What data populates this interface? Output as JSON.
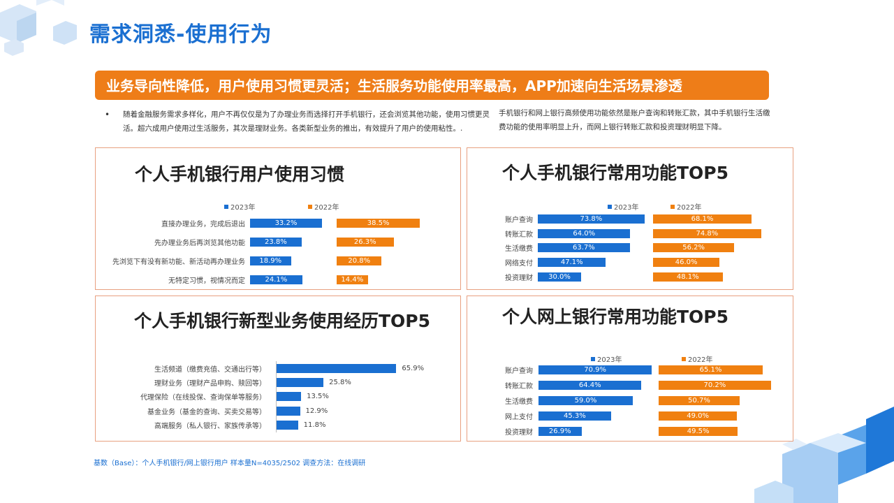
{
  "header": {
    "title": "需求洞悉-使用行为"
  },
  "banner": {
    "text": "业务导向性降低，用户使用习惯更灵活；生活服务功能使用率最高，APP加速向生活场景渗透"
  },
  "description": {
    "bullet": "•",
    "left": "随着金融服务需求多样化，用户不再仅仅是为了办理业务而选择打开手机银行，还会浏览其他功能，使用习惯更灵活。超六成用户使用过生活服务，其次是理财业务。各类新型业务的推出，有效提升了用户的使用粘性。.",
    "right": "手机银行和网上银行高频使用功能依然是账户查询和转账汇款，其中手机银行生活缴费功能的使用率明显上升，而网上银行转账汇款和投资理财明显下降。"
  },
  "footer": {
    "text": "基数（Base）：个人手机银行/网上银行用户  样本量N=4035/2502  调查方法：在线调研"
  },
  "colors": {
    "blue": "#1a6fd1",
    "orange": "#f08010",
    "banner": "#ee7d18"
  },
  "chart_data": [
    {
      "id": "habits",
      "type": "bar",
      "title": "个人手机银行用户使用习惯",
      "categories": [
        "直接办理业务，完成后退出",
        "先办理业务后再浏览其他功能",
        "先浏览下有没有新功能、新活动再办理业务",
        "无特定习惯，视情况而定"
      ],
      "series": [
        {
          "name": "2023年",
          "values": [
            33.2,
            23.8,
            18.9,
            24.1
          ],
          "labels": [
            "33.2%",
            "23.8%",
            "18.9%",
            "24.1%"
          ]
        },
        {
          "name": "2022年",
          "values": [
            38.5,
            26.3,
            20.8,
            14.4
          ],
          "labels": [
            "38.5%",
            "26.3%",
            "20.8%",
            "14.4%"
          ]
        }
      ]
    },
    {
      "id": "mobile_top5",
      "type": "bar",
      "title": "个人手机银行常用功能TOP5",
      "categories": [
        "账户查询",
        "转账汇款",
        "生活缴费",
        "网络支付",
        "投资理财"
      ],
      "series": [
        {
          "name": "2023年",
          "values": [
            73.8,
            64.0,
            63.7,
            47.1,
            30.0
          ],
          "labels": [
            "73.8%",
            "64.0%",
            "63.7%",
            "47.1%",
            "30.0%"
          ]
        },
        {
          "name": "2022年",
          "values": [
            68.1,
            74.8,
            56.2,
            46.0,
            48.1
          ],
          "labels": [
            "68.1%",
            "74.8%",
            "56.2%",
            "46.0%",
            "48.1%"
          ]
        }
      ]
    },
    {
      "id": "new_business",
      "type": "bar",
      "title": "个人手机银行新型业务使用经历TOP5",
      "categories": [
        "生活频道（缴费充值、交通出行等）",
        "理财业务（理财产品申购、赎回等）",
        "代理保险（在线投保、查询保单等服务）",
        "基金业务（基金的查询、买卖交易等）",
        "高端服务（私人银行、家族传承等）"
      ],
      "series": [
        {
          "values": [
            65.9,
            25.8,
            13.5,
            12.9,
            11.8
          ],
          "labels": [
            "65.9%",
            "25.8%",
            "13.5%",
            "12.9%",
            "11.8%"
          ]
        }
      ]
    },
    {
      "id": "online_top5",
      "type": "bar",
      "title": "个人网上银行常用功能TOP5",
      "categories": [
        "账户查询",
        "转账汇款",
        "生活缴费",
        "网上支付",
        "投资理财"
      ],
      "series": [
        {
          "name": "2023年",
          "values": [
            70.9,
            64.4,
            59.0,
            45.3,
            26.9
          ],
          "labels": [
            "70.9%",
            "64.4%",
            "59.0%",
            "45.3%",
            "26.9%"
          ]
        },
        {
          "name": "2022年",
          "values": [
            65.1,
            70.2,
            50.7,
            49.0,
            49.5
          ],
          "labels": [
            "65.1%",
            "70.2%",
            "50.7%",
            "49.0%",
            "49.5%"
          ]
        }
      ]
    }
  ]
}
